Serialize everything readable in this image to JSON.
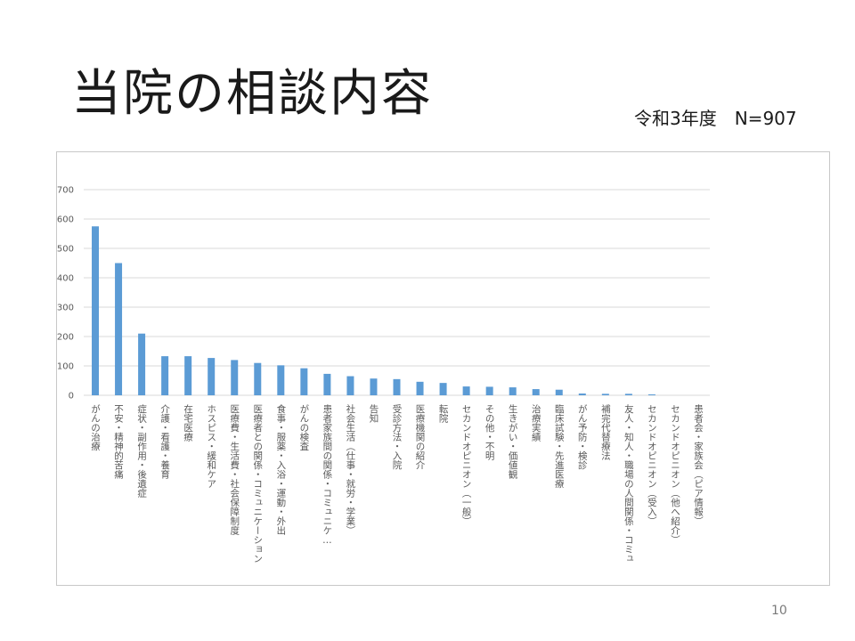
{
  "slide": {
    "title": "当院の相談内容",
    "subtitle": "令和3年度　N=907",
    "page_number": "10"
  },
  "colors": {
    "bar": "#5b9bd5",
    "gridline": "#d9d9d9",
    "axis_text": "#595959"
  },
  "chart_data": {
    "type": "bar",
    "title": "",
    "xlabel": "",
    "ylabel": "",
    "ylim": [
      0,
      700
    ],
    "yticks": [
      0,
      100,
      200,
      300,
      400,
      500,
      600,
      700
    ],
    "grid": true,
    "legend": "none",
    "categories": [
      "がんの治療",
      "不安・精神的苦痛",
      "症状・副作用・後遺症",
      "介護・看護・養育",
      "在宅医療",
      "ホスピス・緩和ケア",
      "医療費・生活費・社会保障制度",
      "医療者との関係・コミュニケーション",
      "食事・服薬・入浴・運動・外出",
      "がんの検査",
      "患者家族間の関係・コミュニケ…",
      "社会生活（仕事・就労・学業）",
      "告知",
      "受診方法・入院",
      "医療機関の紹介",
      "転院",
      "セカンドオピニオン（一般）",
      "その他・不明",
      "生きがい・価値観",
      "治療実績",
      "臨床試験・先進医療",
      "がん予防・検診",
      "補完代替療法",
      "友人・知人・職場の人間関係・コミュ",
      "セカンドオピニオン（受入）",
      "セカンドオピニオン（他へ紹介）",
      "患者会・家族会（ピア情報）"
    ],
    "values": [
      575,
      450,
      210,
      133,
      133,
      127,
      120,
      110,
      102,
      92,
      73,
      65,
      57,
      55,
      46,
      42,
      30,
      29,
      27,
      21,
      19,
      6,
      5,
      5,
      3,
      0,
      0
    ]
  }
}
